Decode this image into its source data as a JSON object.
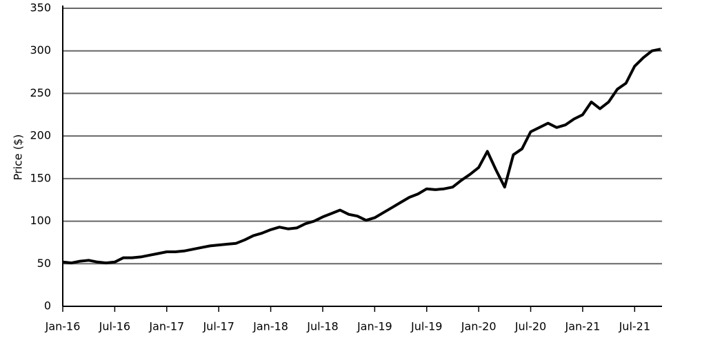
{
  "chart_data": {
    "type": "line",
    "y_label": "Price ($)",
    "x": [
      "2016-01",
      "2016-02",
      "2016-03",
      "2016-04",
      "2016-05",
      "2016-06",
      "2016-07",
      "2016-08",
      "2016-09",
      "2016-10",
      "2016-11",
      "2016-12",
      "2017-01",
      "2017-02",
      "2017-03",
      "2017-04",
      "2017-05",
      "2017-06",
      "2017-07",
      "2017-08",
      "2017-09",
      "2017-10",
      "2017-11",
      "2017-12",
      "2018-01",
      "2018-02",
      "2018-03",
      "2018-04",
      "2018-05",
      "2018-06",
      "2018-07",
      "2018-08",
      "2018-09",
      "2018-10",
      "2018-11",
      "2018-12",
      "2019-01",
      "2019-02",
      "2019-03",
      "2019-04",
      "2019-05",
      "2019-06",
      "2019-07",
      "2019-08",
      "2019-09",
      "2019-10",
      "2019-11",
      "2019-12",
      "2020-01",
      "2020-02",
      "2020-03",
      "2020-04",
      "2020-05",
      "2020-06",
      "2020-07",
      "2020-08",
      "2020-09",
      "2020-10",
      "2020-11",
      "2020-12",
      "2021-01",
      "2021-02",
      "2021-03",
      "2021-04",
      "2021-05",
      "2021-06",
      "2021-07",
      "2021-08",
      "2021-09",
      "2021-10"
    ],
    "values": [
      52,
      51,
      53,
      54,
      52,
      51,
      52,
      57,
      57,
      58,
      60,
      62,
      64,
      64,
      65,
      67,
      69,
      71,
      72,
      73,
      74,
      78,
      83,
      86,
      90,
      93,
      91,
      92,
      97,
      100,
      105,
      109,
      113,
      108,
      106,
      101,
      104,
      110,
      116,
      122,
      128,
      132,
      138,
      137,
      138,
      140,
      148,
      155,
      163,
      182,
      160,
      140,
      178,
      185,
      205,
      210,
      215,
      210,
      213,
      220,
      225,
      240,
      232,
      240,
      255,
      262,
      282,
      292,
      300,
      302
    ],
    "color": "#000000",
    "xlim": [
      "2016-01",
      "2021-10"
    ],
    "xticks": [
      {
        "value": "2016-01",
        "label": "Jan-16"
      },
      {
        "value": "2016-07",
        "label": "Jul-16"
      },
      {
        "value": "2017-01",
        "label": "Jan-17"
      },
      {
        "value": "2017-07",
        "label": "Jul-17"
      },
      {
        "value": "2018-01",
        "label": "Jan-18"
      },
      {
        "value": "2018-07",
        "label": "Jul-18"
      },
      {
        "value": "2019-01",
        "label": "Jan-19"
      },
      {
        "value": "2019-07",
        "label": "Jul-19"
      },
      {
        "value": "2020-01",
        "label": "Jan-20"
      },
      {
        "value": "2020-07",
        "label": "Jul-20"
      },
      {
        "value": "2021-01",
        "label": "Jan-21"
      },
      {
        "value": "2021-07",
        "label": "Jul-21"
      }
    ],
    "ylim": [
      0,
      350
    ],
    "yticks": [
      0,
      50,
      100,
      150,
      200,
      250,
      300,
      350
    ],
    "grid": true
  }
}
